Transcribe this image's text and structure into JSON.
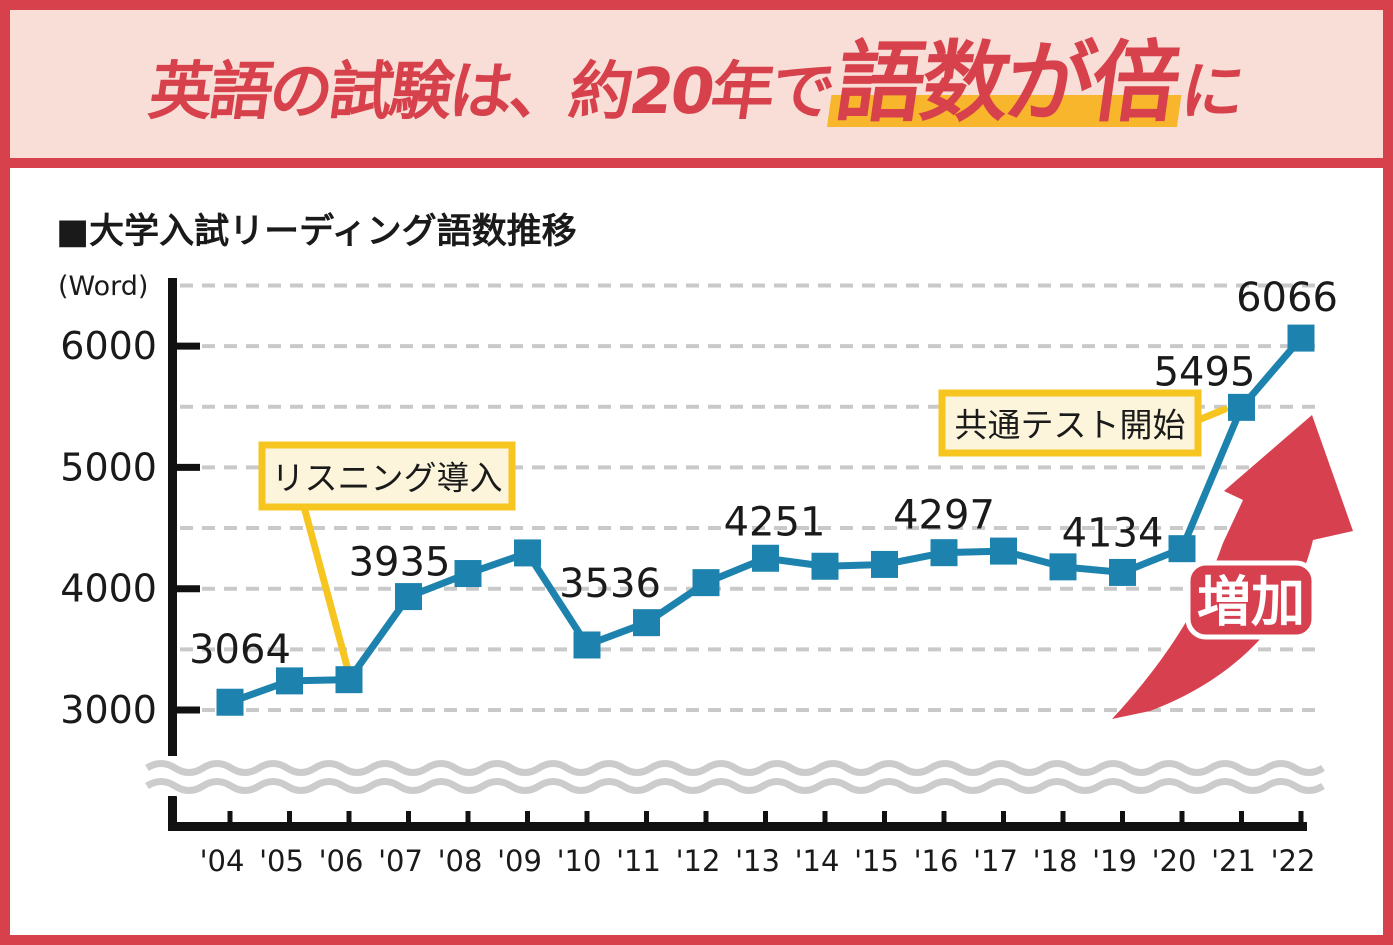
{
  "banner": {
    "title_prefix": "英語の試験は、約20年で",
    "title_highlight": "語数が倍",
    "title_suffix": "に"
  },
  "chart": {
    "title": "■大学入試リーディング語数推移",
    "unit_label": "(Word)",
    "arrow_label": "増加"
  },
  "colors": {
    "brand_red": "#d6414c",
    "banner_pink": "#f8ded6",
    "highlight_yellow": "#f8b62d",
    "annotation_yellow": "#f6c51f",
    "annotation_fill": "#fcf5dc",
    "series_blue": "#1d83ae",
    "grid_gray": "#c9c9c9",
    "wave_gray": "#cccccc",
    "text_ink": "#1a1a1a"
  },
  "chart_data": {
    "type": "line",
    "title": "大学入試リーディング語数推移",
    "xlabel": "",
    "ylabel": "(Word)",
    "categories": [
      "'04",
      "'05",
      "'06",
      "'07",
      "'08",
      "'09",
      "'10",
      "'11",
      "'12",
      "'13",
      "'14",
      "'15",
      "'16",
      "'17",
      "'18",
      "'19",
      "'20",
      "'21",
      "'22"
    ],
    "values": [
      3064,
      3240,
      3250,
      3935,
      4125,
      4295,
      3536,
      3720,
      4050,
      4251,
      4185,
      4200,
      4297,
      4310,
      4180,
      4134,
      4330,
      5495,
      6066
    ],
    "labeled_points": {
      "'04": 3064,
      "'07": 3935,
      "'10": 3536,
      "'13": 4251,
      "'16": 4297,
      "'19": 4134,
      "'21": 5495,
      "'22": 6066
    },
    "labeled_years": [
      "'04",
      "'07",
      "'10",
      "'13",
      "'16",
      "'19",
      "'21",
      "'22"
    ],
    "ylim": [
      3000,
      6500
    ],
    "yticks": [
      3000,
      4000,
      5000,
      6000
    ],
    "gridline_step": 500,
    "grid": "dashed",
    "axis_break_below_ymin": true,
    "legend_position": "none",
    "annotations": [
      {
        "text": "リスニング導入",
        "target_year": "'06"
      },
      {
        "text": "共通テスト開始",
        "target_year": "'21"
      }
    ],
    "arrow_annotation": "増加"
  }
}
